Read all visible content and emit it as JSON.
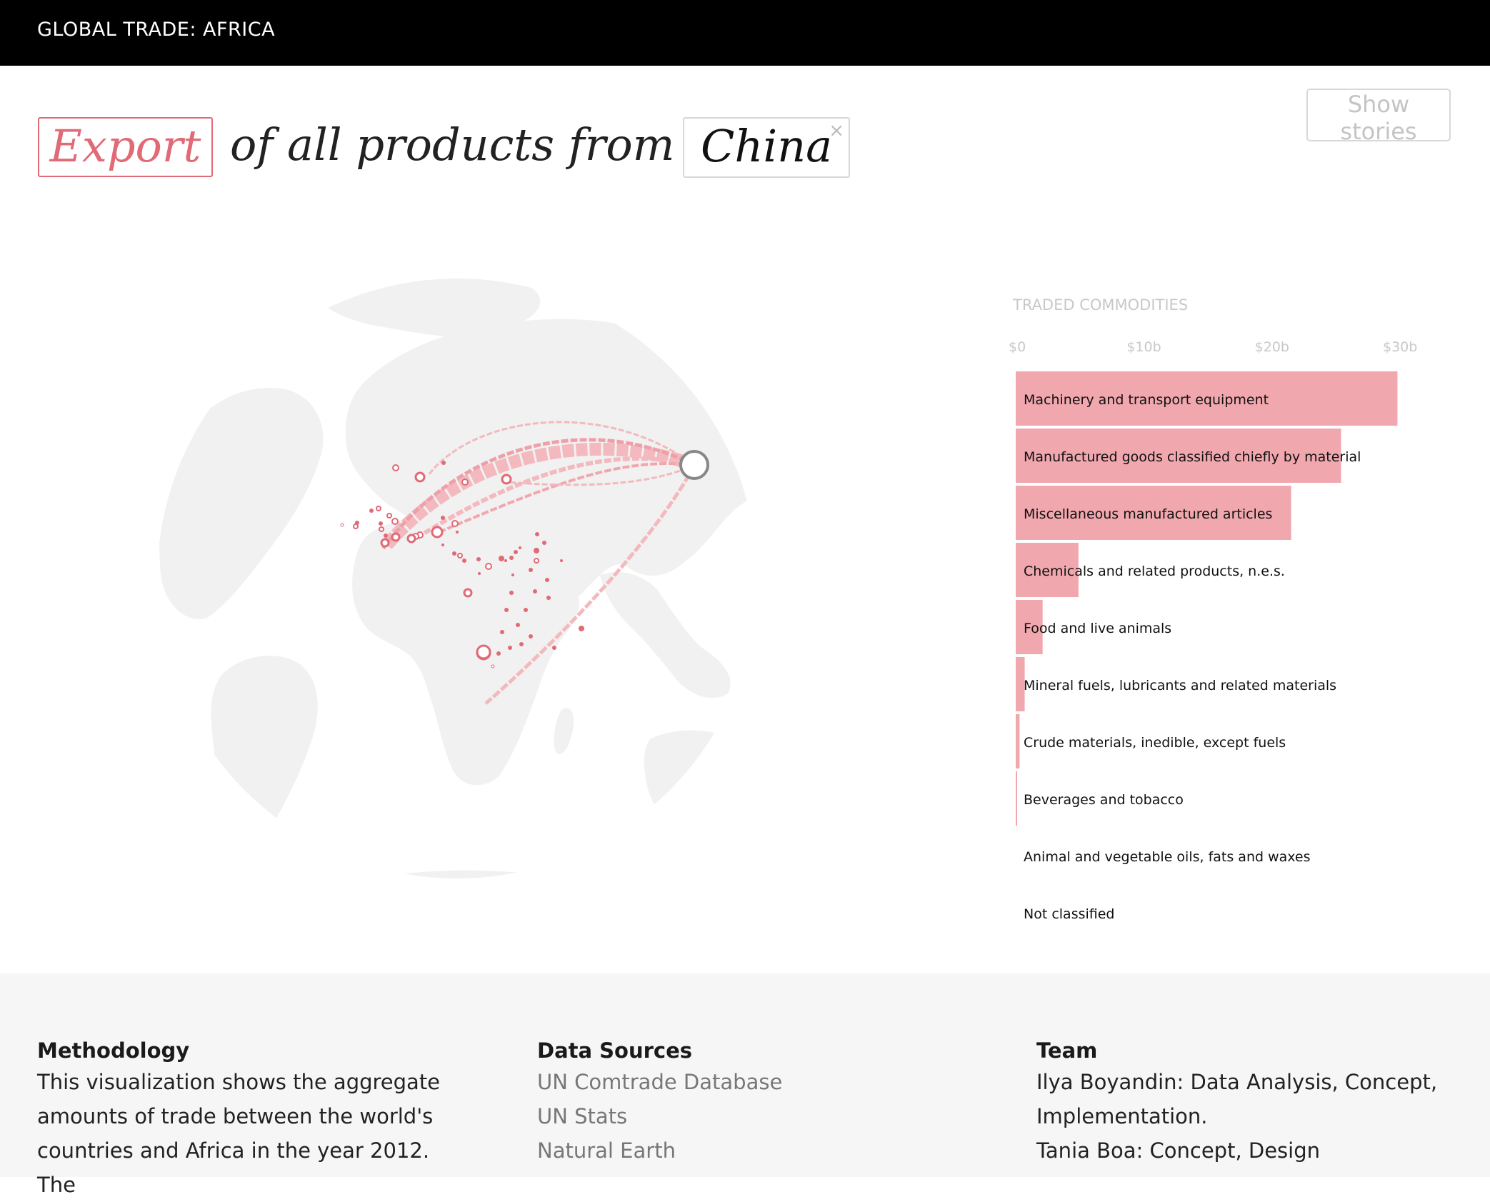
{
  "header": {
    "title": "GLOBAL TRADE: AFRICA"
  },
  "query": {
    "mode": "Export",
    "middle": "of all products from",
    "country": "China",
    "clear_icon": "×"
  },
  "buttons": {
    "show_stories": "Show stories"
  },
  "colors": {
    "accent": "#e06a75",
    "bar": "#f0a7ae",
    "globe": "#f1f1f1"
  },
  "chart_data": {
    "type": "bar",
    "orientation": "horizontal",
    "title": "TRADED COMMODITIES",
    "xlim": [
      0,
      30
    ],
    "x_ticks": [
      "$0",
      "$10b",
      "$20b",
      "$30b"
    ],
    "x_tick_values": [
      0,
      10,
      20,
      30
    ],
    "categories": [
      "Machinery and transport equipment",
      "Manufactured goods classified chiefly by material",
      "Miscellaneous manufactured articles",
      "Chemicals and related products, n.e.s.",
      "Food and live animals",
      "Mineral fuels, lubricants and related materials",
      "Crude materials, inedible, except fuels",
      "Beverages and tobacco",
      "Animal and vegetable oils, fats and waxes",
      "Not classified"
    ],
    "values": [
      29.8,
      25.4,
      21.5,
      4.9,
      2.1,
      0.7,
      0.3,
      0.1,
      0.0,
      0.0
    ]
  },
  "footer": {
    "methodology": {
      "heading": "Methodology",
      "lines": [
        "This visualization shows the aggregate",
        "amounts of trade between the world's",
        "countries and Africa in the year 2012. The"
      ]
    },
    "sources": {
      "heading": "Data Sources",
      "links": [
        "UN Comtrade Database",
        "UN Stats",
        "Natural Earth"
      ]
    },
    "team": {
      "heading": "Team",
      "lines": [
        "Ilya Boyandin: Data Analysis, Concept,",
        "Implementation.",
        "Tania Boa: Concept, Design"
      ]
    }
  }
}
